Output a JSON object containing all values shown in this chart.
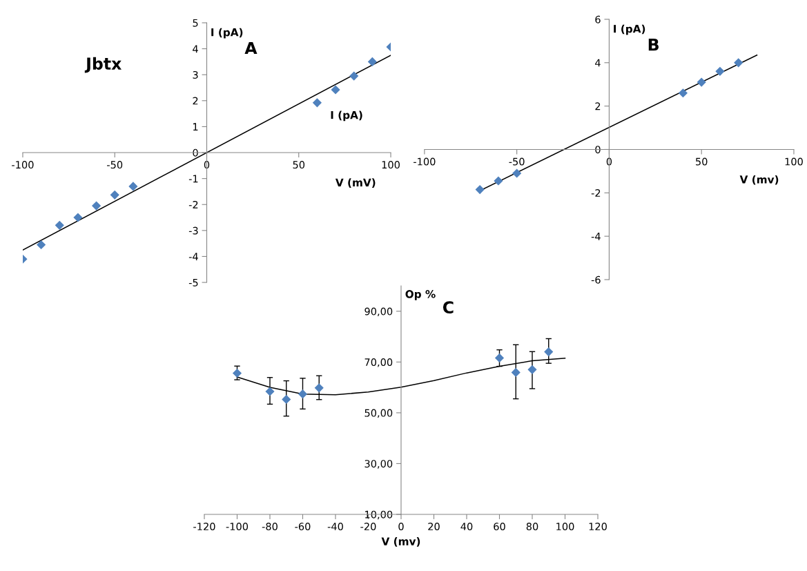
{
  "chart_data": [
    {
      "type": "scatter",
      "title": "A",
      "xlabel": "V (mV)",
      "ylabel": "I (pA)",
      "annotations": [
        "Jbtx",
        "I (pA)"
      ],
      "xlim": [
        -100,
        100
      ],
      "xticks": [
        -100,
        -50,
        0,
        50,
        100
      ],
      "ylim": [
        -5,
        5
      ],
      "yticks": [
        -5,
        -4,
        -3,
        -2,
        -1,
        0,
        1,
        2,
        3,
        4,
        5
      ],
      "grid": false,
      "series": [
        {
          "color": "#4f81bd",
          "marker": "diamond",
          "x": [
            -100,
            -90,
            -80,
            -70,
            -60,
            -50,
            -40,
            60,
            70,
            80,
            90,
            100
          ],
          "values": [
            -4.1,
            -3.55,
            -2.8,
            -2.5,
            -2.05,
            -1.63,
            -1.3,
            1.92,
            2.42,
            2.95,
            3.5,
            4.07
          ]
        },
        {
          "type": "line",
          "color": "#000000",
          "marker": "none",
          "x": [
            -100,
            100
          ],
          "values": [
            -3.75,
            3.75
          ]
        }
      ]
    },
    {
      "type": "scatter",
      "title": "B",
      "xlabel": "V (mv)",
      "ylabel": "I (pA)",
      "xlim": [
        -100,
        100
      ],
      "xticks": [
        -100,
        -50,
        0,
        50,
        100
      ],
      "ylim": [
        -6,
        6
      ],
      "yticks": [
        -6,
        -4,
        -2,
        0,
        2,
        4,
        6
      ],
      "grid": false,
      "series": [
        {
          "color": "#4f81bd",
          "marker": "diamond",
          "x": [
            -70,
            -60,
            -50,
            40,
            50,
            60,
            70
          ],
          "values": [
            -1.85,
            -1.45,
            -1.1,
            2.6,
            3.1,
            3.6,
            4.0
          ]
        },
        {
          "type": "line",
          "color": "#000000",
          "marker": "none",
          "x": [
            -70,
            80
          ],
          "values": [
            -1.9,
            4.35
          ]
        }
      ]
    },
    {
      "type": "scatter",
      "title": "C",
      "xlabel": "V (mv)",
      "ylabel": "Op %",
      "xlim": [
        -120,
        120
      ],
      "xticks": [
        -120,
        -100,
        -80,
        -60,
        -40,
        -20,
        0,
        20,
        40,
        60,
        80,
        100,
        120
      ],
      "ylim": [
        10,
        100
      ],
      "yticks": [
        {
          "value": 10,
          "label": "10,00"
        },
        {
          "value": 30,
          "label": "30,00"
        },
        {
          "value": 50,
          "label": "50,00"
        },
        {
          "value": 70,
          "label": "70,00"
        },
        {
          "value": 90,
          "label": "90,00"
        }
      ],
      "grid": false,
      "series": [
        {
          "color": "#4f81bd",
          "marker": "diamond",
          "x": [
            -100,
            -80,
            -70,
            -60,
            -50,
            60,
            70,
            80,
            90
          ],
          "values": [
            65.6,
            58.4,
            55.3,
            57.4,
            59.8,
            71.6,
            65.9,
            67,
            74
          ],
          "errors": [
            [
              63,
              68.4
            ],
            [
              53.4,
              63.9
            ],
            [
              48.7,
              62.6
            ],
            [
              51.5,
              63.6
            ],
            [
              55.2,
              64.6
            ],
            [
              68.3,
              74.8
            ],
            [
              55.5,
              76.8
            ],
            [
              59.5,
              74.1
            ],
            [
              69.5,
              79.2
            ]
          ]
        },
        {
          "type": "line",
          "color": "#000000",
          "marker": "none",
          "x": [
            -100,
            -80,
            -60,
            -40,
            -20,
            0,
            20,
            40,
            60,
            80,
            100
          ],
          "values": [
            64.1,
            60,
            57.4,
            57.1,
            58.2,
            60.1,
            62.7,
            65.7,
            68.3,
            70.5,
            71.5
          ]
        }
      ]
    }
  ]
}
